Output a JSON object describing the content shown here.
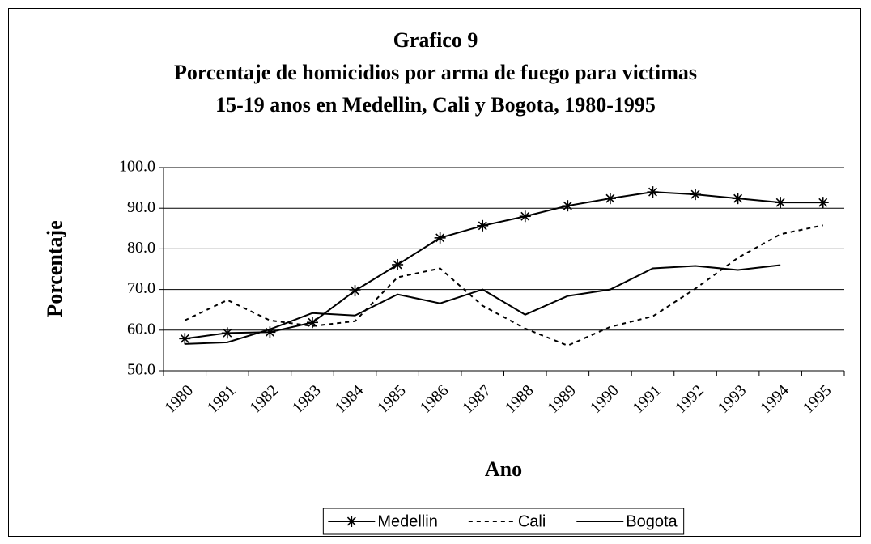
{
  "chart_data": {
    "type": "line",
    "title": "Grafico 9",
    "subtitle": "Porcentaje de homicidios por arma de fuego para victimas 15-19 anos en Medellin, Cali y Bogota, 1980-1995",
    "x_label": "Ano",
    "y_label": "Porcentaje",
    "categories": [
      "1980",
      "1981",
      "1982",
      "1983",
      "1984",
      "1985",
      "1986",
      "1987",
      "1988",
      "1989",
      "1990",
      "1991",
      "1992",
      "1993",
      "1994",
      "1995"
    ],
    "series": [
      {
        "name": "Medellin",
        "color": "#000000",
        "dash": "solid",
        "marker": "asterisk",
        "values": [
          57.9,
          59.3,
          59.5,
          61.9,
          69.7,
          76.1,
          82.7,
          85.7,
          88.0,
          90.6,
          92.4,
          94.0,
          93.4,
          92.4,
          91.4,
          91.4
        ]
      },
      {
        "name": "Cali",
        "color": "#000000",
        "dash": "dashed",
        "marker": "none",
        "values": [
          62.4,
          67.4,
          62.4,
          61.0,
          62.2,
          73.0,
          75.2,
          66.0,
          60.4,
          56.2,
          60.8,
          63.4,
          70.2,
          77.8,
          83.6,
          85.8
        ]
      },
      {
        "name": "Bogota",
        "color": "#000000",
        "dash": "solid",
        "marker": "none",
        "values": [
          56.6,
          57.0,
          60.2,
          64.2,
          63.6,
          68.8,
          66.6,
          70.0,
          63.8,
          68.4,
          70.0,
          75.2,
          75.8,
          74.8,
          76.0,
          null
        ]
      }
    ],
    "ylim": [
      50,
      100
    ],
    "yticks": [
      {
        "value": 50,
        "label": "50.0"
      },
      {
        "value": 60,
        "label": "60.0"
      },
      {
        "value": 70,
        "label": "70.0"
      },
      {
        "value": 80,
        "label": "80.0"
      },
      {
        "value": 90,
        "label": "90.0"
      },
      {
        "value": 100,
        "label": "100.0"
      }
    ],
    "grid": true,
    "legend": "bottom"
  }
}
